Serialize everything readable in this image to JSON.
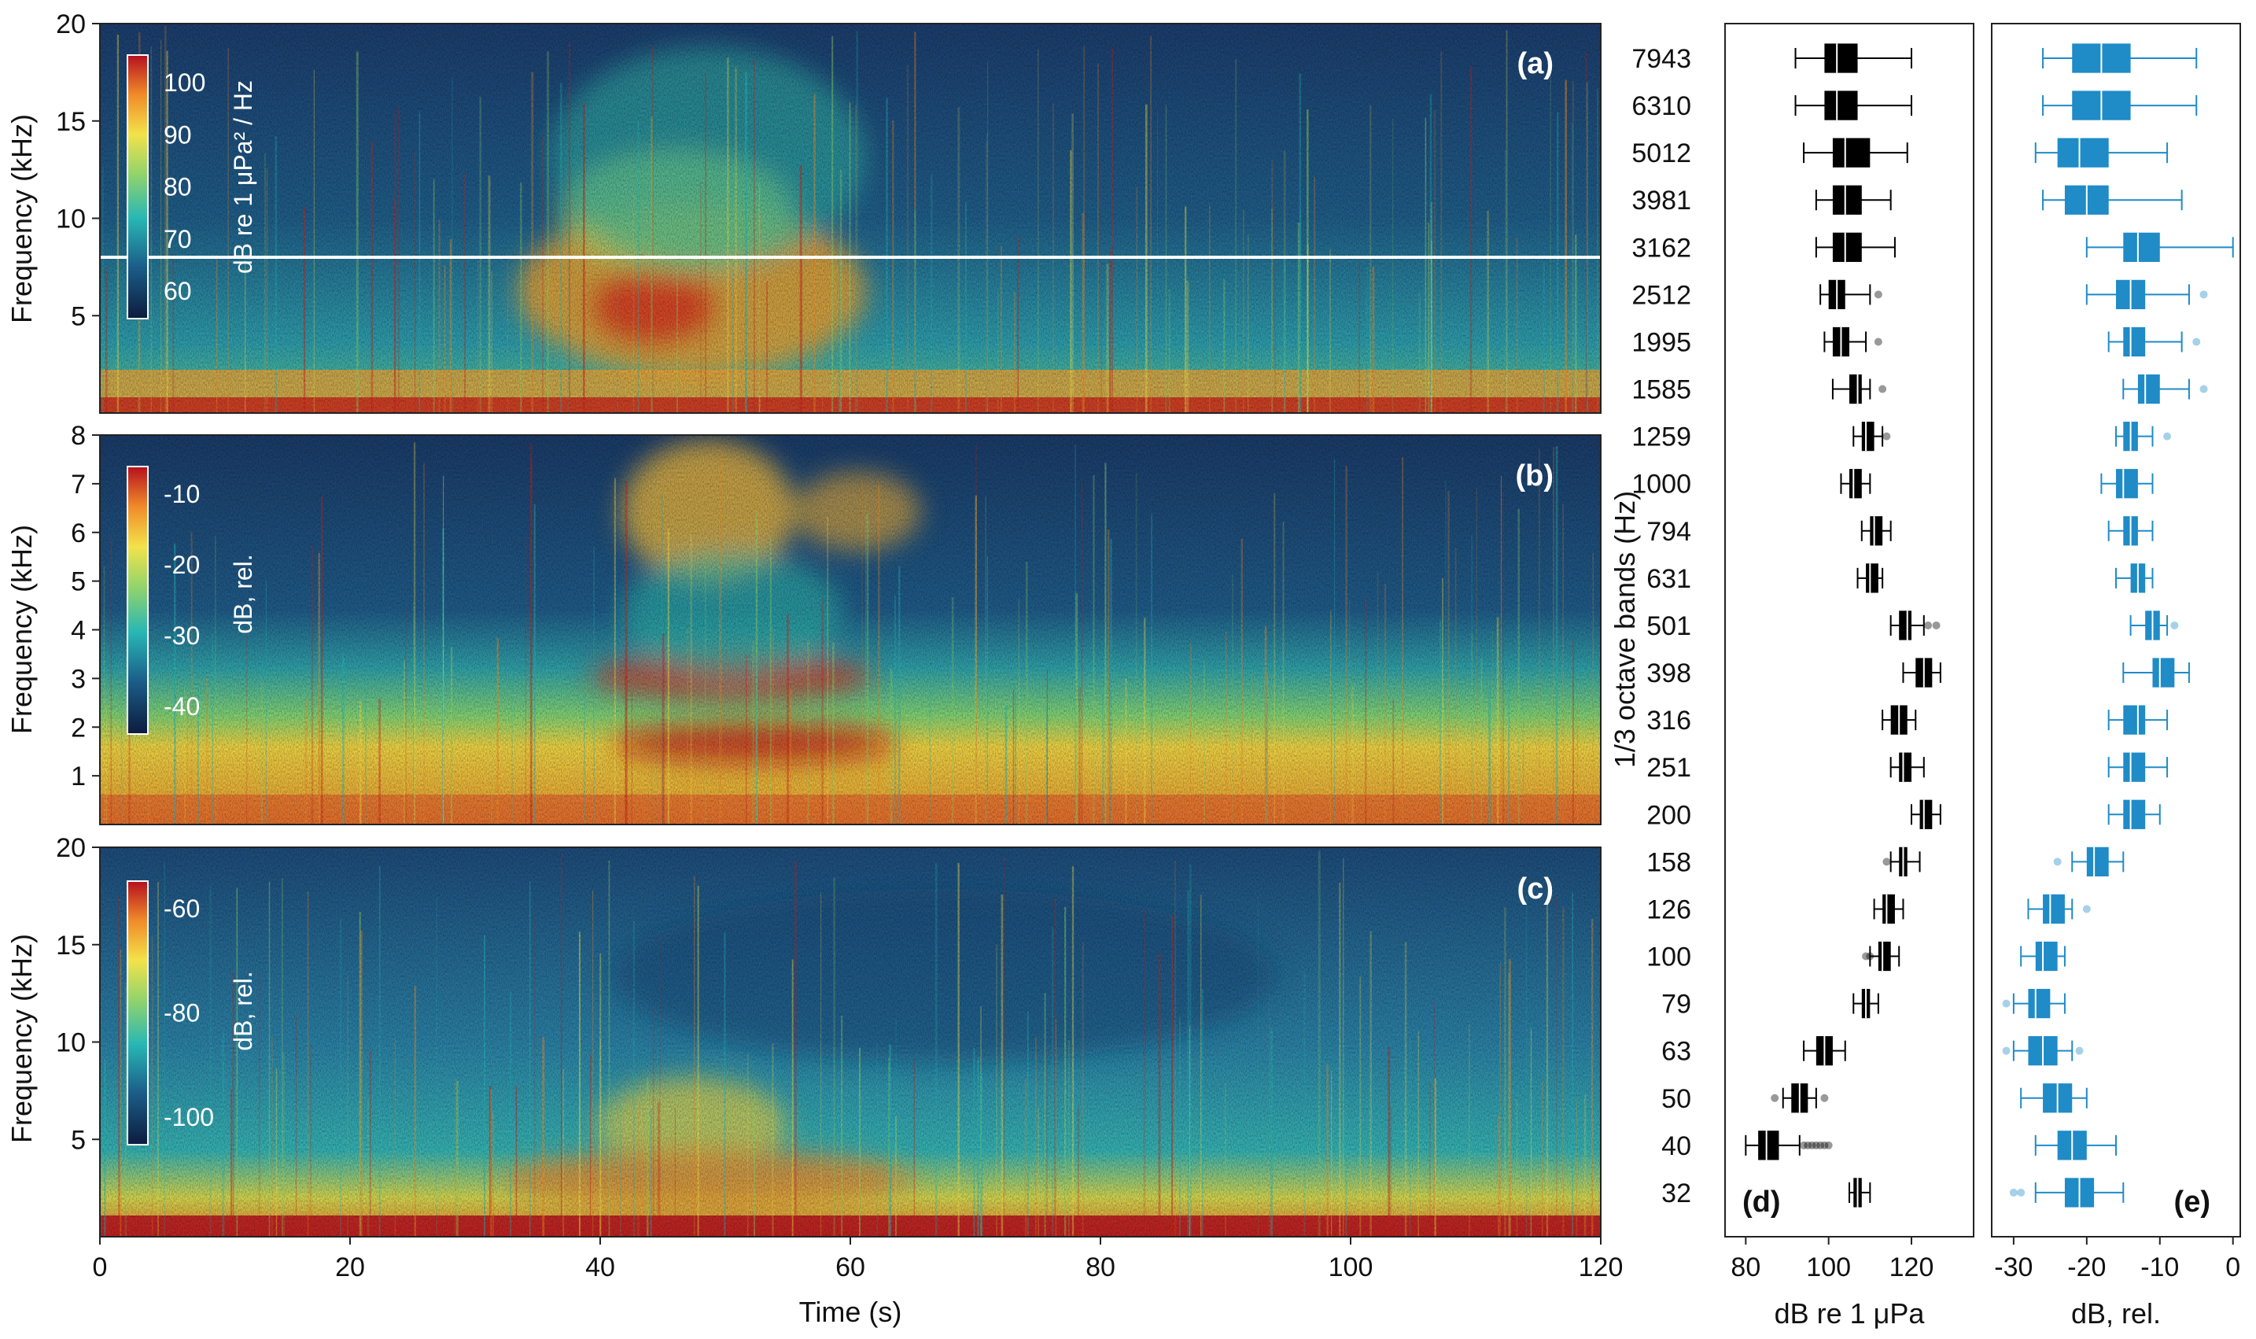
{
  "chart_data": [
    {
      "type": "heatmap",
      "panel_label": "(a)",
      "ylabel": "Frequency (kHz)",
      "ylim": [
        0,
        20
      ],
      "yticks": [
        "5",
        "10",
        "15",
        "20"
      ],
      "xlim": [
        0,
        120
      ],
      "colorbar": {
        "label": "dB re 1 μPa² / Hz",
        "ticks": [
          "100",
          "90",
          "80",
          "70",
          "60"
        ]
      },
      "reference_line_khz": 8
    },
    {
      "type": "heatmap",
      "panel_label": "(b)",
      "ylabel": "Frequency (kHz)",
      "ylim": [
        0,
        8
      ],
      "yticks": [
        "1",
        "2",
        "3",
        "4",
        "5",
        "6",
        "7",
        "8"
      ],
      "xlim": [
        0,
        120
      ],
      "colorbar": {
        "label": "dB, rel.",
        "ticks": [
          "-10",
          "-20",
          "-30",
          "-40"
        ]
      }
    },
    {
      "type": "heatmap",
      "panel_label": "(c)",
      "ylabel": "Frequency (kHz)",
      "ylim": [
        0,
        20
      ],
      "yticks": [
        "5",
        "10",
        "15",
        "20"
      ],
      "xlim": [
        0,
        120
      ],
      "xlabel": "Time (s)",
      "xticks": [
        "0",
        "20",
        "40",
        "60",
        "80",
        "100",
        "120"
      ],
      "colorbar": {
        "label": "dB, rel.",
        "ticks": [
          "-60",
          "-80",
          "-100"
        ]
      }
    },
    {
      "type": "box",
      "panel_label": "(d)",
      "ylabel": "1/3 octave bands (Hz)",
      "categories": [
        "7943",
        "6310",
        "5012",
        "3981",
        "3162",
        "2512",
        "1995",
        "1585",
        "1259",
        "1000",
        "794",
        "631",
        "501",
        "398",
        "316",
        "251",
        "200",
        "158",
        "126",
        "100",
        "79",
        "63",
        "50",
        "40",
        "32"
      ],
      "xlabel": "dB re 1 μPa",
      "xlim": [
        75,
        135
      ],
      "xticks": [
        "80",
        "100",
        "120"
      ],
      "color": "#000000",
      "boxes": [
        {
          "wlo": 92,
          "q1": 99,
          "med": 102,
          "q3": 107,
          "whi": 120,
          "out": []
        },
        {
          "wlo": 92,
          "q1": 99,
          "med": 102,
          "q3": 107,
          "whi": 120,
          "out": []
        },
        {
          "wlo": 94,
          "q1": 101,
          "med": 104,
          "q3": 110,
          "whi": 119,
          "out": []
        },
        {
          "wlo": 97,
          "q1": 101,
          "med": 104,
          "q3": 108,
          "whi": 115,
          "out": []
        },
        {
          "wlo": 97,
          "q1": 101,
          "med": 104,
          "q3": 108,
          "whi": 116,
          "out": []
        },
        {
          "wlo": 98,
          "q1": 100,
          "med": 102,
          "q3": 104,
          "whi": 110,
          "out": [
            112
          ]
        },
        {
          "wlo": 99,
          "q1": 101,
          "med": 103,
          "q3": 105,
          "whi": 109,
          "out": [
            112
          ]
        },
        {
          "wlo": 101,
          "q1": 105,
          "med": 107,
          "q3": 108,
          "whi": 110,
          "out": [
            113
          ]
        },
        {
          "wlo": 106,
          "q1": 108,
          "med": 109,
          "q3": 111,
          "whi": 113,
          "out": [
            114
          ]
        },
        {
          "wlo": 103,
          "q1": 105,
          "med": 106,
          "q3": 108,
          "whi": 110,
          "out": []
        },
        {
          "wlo": 108,
          "q1": 110,
          "med": 111,
          "q3": 113,
          "whi": 115,
          "out": []
        },
        {
          "wlo": 107,
          "q1": 109,
          "med": 110,
          "q3": 112,
          "whi": 113,
          "out": []
        },
        {
          "wlo": 115,
          "q1": 117,
          "med": 119,
          "q3": 120,
          "whi": 123,
          "out": [
            124,
            126
          ]
        },
        {
          "wlo": 118,
          "q1": 121,
          "med": 123,
          "q3": 125,
          "whi": 127,
          "out": []
        },
        {
          "wlo": 113,
          "q1": 115,
          "med": 117,
          "q3": 119,
          "whi": 121,
          "out": []
        },
        {
          "wlo": 115,
          "q1": 117,
          "med": 118,
          "q3": 120,
          "whi": 123,
          "out": []
        },
        {
          "wlo": 120,
          "q1": 122,
          "med": 123,
          "q3": 125,
          "whi": 127,
          "out": []
        },
        {
          "wlo": 115,
          "q1": 117,
          "med": 118,
          "q3": 119,
          "whi": 122,
          "out": [
            114
          ]
        },
        {
          "wlo": 111,
          "q1": 113,
          "med": 114,
          "q3": 116,
          "whi": 118,
          "out": []
        },
        {
          "wlo": 110,
          "q1": 112,
          "med": 113,
          "q3": 115,
          "whi": 117,
          "out": [
            109,
            110
          ]
        },
        {
          "wlo": 106,
          "q1": 108,
          "med": 109,
          "q3": 110,
          "whi": 112,
          "out": []
        },
        {
          "wlo": 94,
          "q1": 97,
          "med": 99,
          "q3": 101,
          "whi": 104,
          "out": []
        },
        {
          "wlo": 89,
          "q1": 91,
          "med": 93,
          "q3": 95,
          "whi": 97,
          "out": [
            87,
            99
          ]
        },
        {
          "wlo": 80,
          "q1": 83,
          "med": 85,
          "q3": 88,
          "whi": 93,
          "out": [
            94,
            95,
            96,
            97,
            98,
            99,
            100
          ]
        },
        {
          "wlo": 105,
          "q1": 106,
          "med": 107,
          "q3": 108,
          "whi": 110,
          "out": []
        }
      ]
    },
    {
      "type": "box",
      "panel_label": "(e)",
      "xlabel": "dB, rel.",
      "xlim": [
        -33,
        1
      ],
      "xticks": [
        "-30",
        "-20",
        "-10",
        "0"
      ],
      "color": "#1f8bc7",
      "boxes": [
        {
          "wlo": -26,
          "q1": -22,
          "med": -18,
          "q3": -14,
          "whi": -5,
          "out": []
        },
        {
          "wlo": -26,
          "q1": -22,
          "med": -18,
          "q3": -14,
          "whi": -5,
          "out": []
        },
        {
          "wlo": -27,
          "q1": -24,
          "med": -21,
          "q3": -17,
          "whi": -9,
          "out": []
        },
        {
          "wlo": -26,
          "q1": -23,
          "med": -20,
          "q3": -17,
          "whi": -7,
          "out": []
        },
        {
          "wlo": -20,
          "q1": -15,
          "med": -13,
          "q3": -10,
          "whi": 0,
          "out": []
        },
        {
          "wlo": -20,
          "q1": -16,
          "med": -14,
          "q3": -12,
          "whi": -6,
          "out": [
            -4
          ]
        },
        {
          "wlo": -17,
          "q1": -15,
          "med": -14,
          "q3": -12,
          "whi": -7,
          "out": [
            -5
          ]
        },
        {
          "wlo": -15,
          "q1": -13,
          "med": -12,
          "q3": -10,
          "whi": -6,
          "out": [
            -4
          ]
        },
        {
          "wlo": -16,
          "q1": -15,
          "med": -14,
          "q3": -13,
          "whi": -11,
          "out": [
            -9
          ]
        },
        {
          "wlo": -18,
          "q1": -16,
          "med": -15,
          "q3": -13,
          "whi": -11,
          "out": []
        },
        {
          "wlo": -17,
          "q1": -15,
          "med": -14,
          "q3": -13,
          "whi": -11,
          "out": []
        },
        {
          "wlo": -16,
          "q1": -14,
          "med": -13,
          "q3": -12,
          "whi": -11,
          "out": []
        },
        {
          "wlo": -14,
          "q1": -12,
          "med": -11,
          "q3": -10,
          "whi": -9,
          "out": [
            -8
          ]
        },
        {
          "wlo": -15,
          "q1": -11,
          "med": -10,
          "q3": -8,
          "whi": -6,
          "out": []
        },
        {
          "wlo": -17,
          "q1": -15,
          "med": -13,
          "q3": -12,
          "whi": -9,
          "out": []
        },
        {
          "wlo": -17,
          "q1": -15,
          "med": -14,
          "q3": -12,
          "whi": -9,
          "out": []
        },
        {
          "wlo": -17,
          "q1": -15,
          "med": -14,
          "q3": -12,
          "whi": -10,
          "out": []
        },
        {
          "wlo": -22,
          "q1": -20,
          "med": -19,
          "q3": -17,
          "whi": -15,
          "out": [
            -24
          ]
        },
        {
          "wlo": -28,
          "q1": -26,
          "med": -25,
          "q3": -23,
          "whi": -22,
          "out": [
            -20
          ]
        },
        {
          "wlo": -29,
          "q1": -27,
          "med": -26,
          "q3": -24,
          "whi": -23,
          "out": []
        },
        {
          "wlo": -30,
          "q1": -28,
          "med": -27,
          "q3": -25,
          "whi": -23,
          "out": [
            -31
          ]
        },
        {
          "wlo": -30,
          "q1": -28,
          "med": -26,
          "q3": -24,
          "whi": -22,
          "out": [
            -31,
            -21
          ]
        },
        {
          "wlo": -29,
          "q1": -26,
          "med": -24,
          "q3": -22,
          "whi": -20,
          "out": []
        },
        {
          "wlo": -27,
          "q1": -24,
          "med": -22,
          "q3": -20,
          "whi": -16,
          "out": []
        },
        {
          "wlo": -27,
          "q1": -23,
          "med": -21,
          "q3": -19,
          "whi": -15,
          "out": [
            -30,
            -29
          ]
        }
      ]
    }
  ]
}
